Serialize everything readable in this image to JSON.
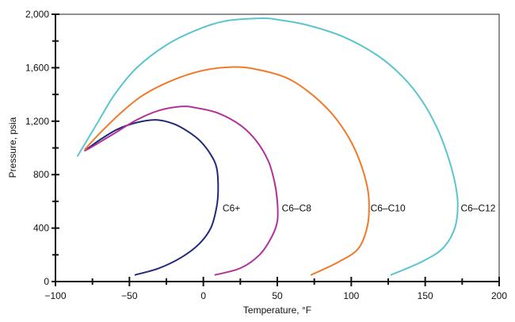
{
  "chart_data": {
    "type": "line",
    "title": "",
    "xlabel": "Temperature, °F",
    "ylabel": "Pressure, psia",
    "xlim": [
      -100,
      200
    ],
    "ylim": [
      0,
      2000
    ],
    "xticks": [
      "−100",
      "−50",
      "0",
      "50",
      "100",
      "150",
      "200"
    ],
    "yticks": [
      "0",
      "400",
      "800",
      "1,200",
      "1,600",
      "2,000"
    ],
    "grid": false,
    "legend": "none",
    "series": [
      {
        "name": "C6+",
        "color": "#1f2a7a",
        "points": [
          [
            -46,
            50
          ],
          [
            -30,
            100
          ],
          [
            -15,
            180
          ],
          [
            -3,
            280
          ],
          [
            5,
            400
          ],
          [
            9,
            560
          ],
          [
            10,
            700
          ],
          [
            9,
            850
          ],
          [
            5,
            950
          ],
          [
            -2,
            1050
          ],
          [
            -10,
            1120
          ],
          [
            -20,
            1180
          ],
          [
            -32,
            1210
          ],
          [
            -45,
            1190
          ],
          [
            -58,
            1140
          ],
          [
            -70,
            1060
          ],
          [
            -80,
            980
          ]
        ]
      },
      {
        "name": "C6–C8",
        "color": "#b0329a",
        "points": [
          [
            8,
            50
          ],
          [
            25,
            100
          ],
          [
            38,
            200
          ],
          [
            46,
            330
          ],
          [
            50,
            450
          ],
          [
            50,
            600
          ],
          [
            48,
            750
          ],
          [
            44,
            900
          ],
          [
            36,
            1050
          ],
          [
            25,
            1170
          ],
          [
            10,
            1260
          ],
          [
            -5,
            1300
          ],
          [
            -15,
            1310
          ],
          [
            -30,
            1280
          ],
          [
            -45,
            1210
          ],
          [
            -60,
            1110
          ],
          [
            -75,
            1010
          ],
          [
            -80,
            980
          ]
        ]
      },
      {
        "name": "C6–C10",
        "color": "#f07a2a",
        "points": [
          [
            73,
            50
          ],
          [
            92,
            150
          ],
          [
            105,
            250
          ],
          [
            111,
            420
          ],
          [
            112,
            600
          ],
          [
            110,
            750
          ],
          [
            104,
            950
          ],
          [
            96,
            1120
          ],
          [
            85,
            1280
          ],
          [
            70,
            1430
          ],
          [
            55,
            1530
          ],
          [
            35,
            1590
          ],
          [
            20,
            1605
          ],
          [
            0,
            1580
          ],
          [
            -20,
            1510
          ],
          [
            -40,
            1400
          ],
          [
            -55,
            1270
          ],
          [
            -70,
            1110
          ],
          [
            -80,
            990
          ]
        ]
      },
      {
        "name": "C6–C12",
        "color": "#5bc5cf",
        "points": [
          [
            127,
            50
          ],
          [
            148,
            150
          ],
          [
            162,
            250
          ],
          [
            170,
            400
          ],
          [
            172,
            580
          ],
          [
            170,
            750
          ],
          [
            165,
            950
          ],
          [
            158,
            1150
          ],
          [
            148,
            1350
          ],
          [
            135,
            1530
          ],
          [
            118,
            1690
          ],
          [
            95,
            1830
          ],
          [
            70,
            1920
          ],
          [
            50,
            1960
          ],
          [
            40,
            1970
          ],
          [
            15,
            1950
          ],
          [
            -5,
            1880
          ],
          [
            -25,
            1770
          ],
          [
            -45,
            1600
          ],
          [
            -60,
            1400
          ],
          [
            -72,
            1180
          ],
          [
            -85,
            940
          ]
        ]
      }
    ],
    "series_labels": [
      {
        "name": "C6+",
        "x": 13,
        "y": 550
      },
      {
        "name": "C6–C8",
        "x": 53,
        "y": 550
      },
      {
        "name": "C6–C10",
        "x": 113,
        "y": 550
      },
      {
        "name": "C6–C12",
        "x": 174,
        "y": 550
      }
    ]
  }
}
